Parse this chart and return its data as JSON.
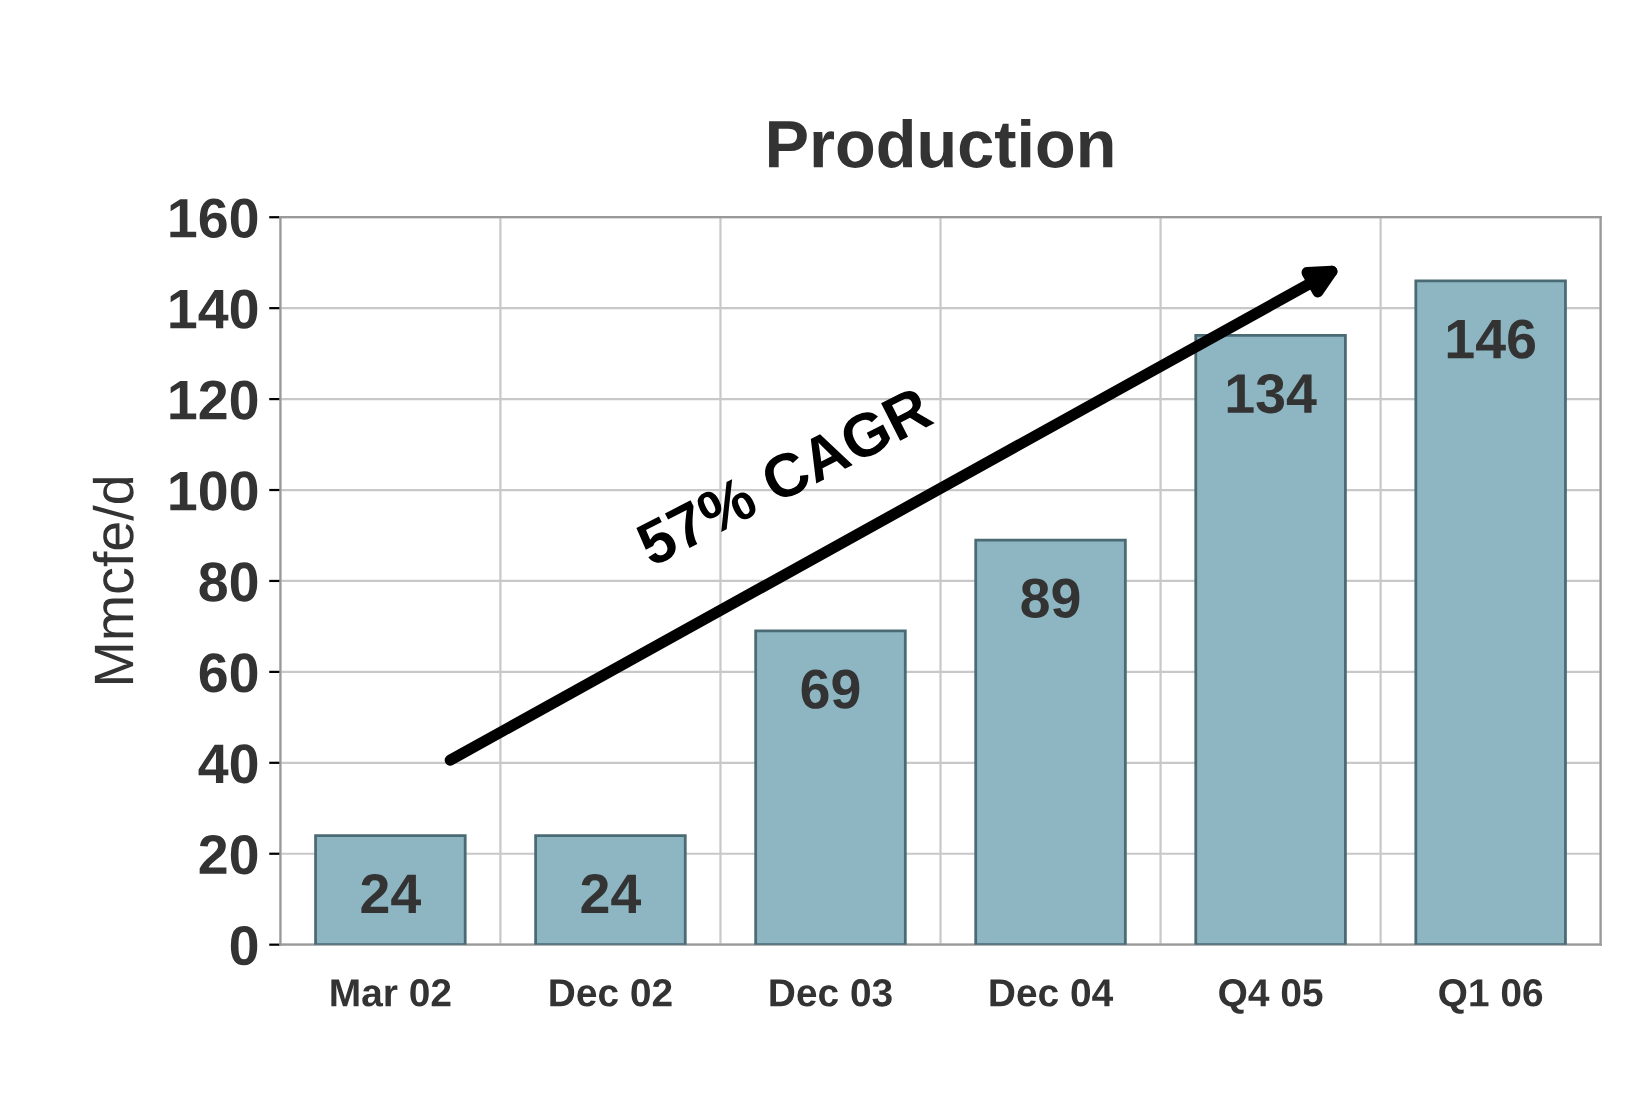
{
  "chart_data": {
    "type": "bar",
    "title": "Production",
    "ylabel": "Mmcfe/d",
    "categories": [
      "Mar 02",
      "Dec 02",
      "Dec 03",
      "Dec 04",
      "Q4 05",
      "Q1 06"
    ],
    "values": [
      24,
      24,
      69,
      89,
      134,
      146
    ],
    "color": "#8db6c2",
    "ylim": [
      0,
      160
    ],
    "yticks": [
      0,
      20,
      40,
      60,
      80,
      100,
      120,
      140,
      160
    ],
    "grid": true,
    "data_labels": true,
    "annotations": [
      "57% CAGR"
    ]
  }
}
